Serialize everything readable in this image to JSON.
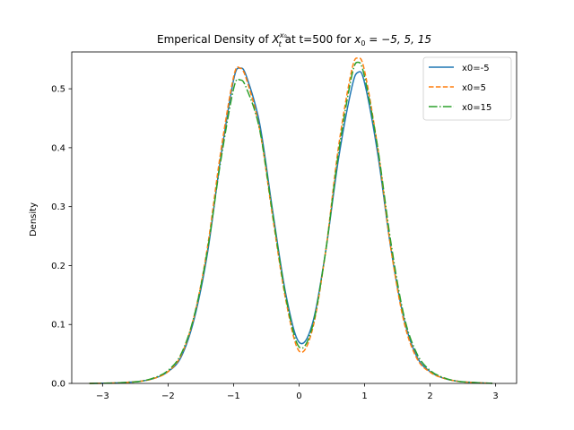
{
  "chart_data": {
    "type": "line",
    "title_prefix": "Emperical Density of ",
    "title_var": "X",
    "title_sub": "t",
    "title_sup": "x₀",
    "title_mid": " at t=500 for ",
    "title_math_var": "x",
    "title_math_sub": "0",
    "title_math_rest": " = −5, 5, 15",
    "xlabel": "",
    "ylabel": "Density",
    "xlim": [
      -3.47,
      3.32
    ],
    "ylim": [
      0.0,
      0.5625
    ],
    "x_ticks": [
      -3,
      -2,
      -1,
      0,
      1,
      2,
      3
    ],
    "x_tick_labels": [
      "−3",
      "−2",
      "−1",
      "0",
      "1",
      "2",
      "3"
    ],
    "y_ticks": [
      0.0,
      0.1,
      0.2,
      0.3,
      0.4,
      0.5
    ],
    "y_tick_labels": [
      "0.0",
      "0.1",
      "0.2",
      "0.3",
      "0.4",
      "0.5"
    ],
    "grid": false,
    "legend_position": "top-right",
    "series": [
      {
        "name": "x0=-5",
        "color": "#1f77b4",
        "dash": "solid",
        "x": [
          -3.2,
          -3.0,
          -2.8,
          -2.6,
          -2.4,
          -2.2,
          -2.0,
          -1.8,
          -1.6,
          -1.4,
          -1.2,
          -1.0,
          -0.9,
          -0.8,
          -0.6,
          -0.4,
          -0.2,
          0.0,
          0.2,
          0.4,
          0.6,
          0.8,
          0.9,
          1.0,
          1.2,
          1.4,
          1.6,
          1.8,
          2.0,
          2.2,
          2.4,
          2.6,
          2.8,
          2.95
        ],
        "y": [
          0.0,
          0.0003,
          0.0008,
          0.002,
          0.004,
          0.009,
          0.02,
          0.045,
          0.11,
          0.22,
          0.38,
          0.515,
          0.535,
          0.52,
          0.44,
          0.29,
          0.15,
          0.07,
          0.1,
          0.22,
          0.38,
          0.5,
          0.528,
          0.51,
          0.39,
          0.23,
          0.11,
          0.045,
          0.02,
          0.009,
          0.004,
          0.002,
          0.0008,
          0.0002
        ]
      },
      {
        "name": "x0=5",
        "color": "#ff7f0e",
        "dash": "dashed",
        "x": [
          -3.2,
          -3.0,
          -2.8,
          -2.6,
          -2.4,
          -2.2,
          -2.0,
          -1.8,
          -1.6,
          -1.4,
          -1.2,
          -1.0,
          -0.9,
          -0.8,
          -0.6,
          -0.4,
          -0.2,
          0.0,
          0.2,
          0.4,
          0.6,
          0.8,
          0.9,
          1.0,
          1.2,
          1.4,
          1.6,
          1.8,
          2.0,
          2.2,
          2.4,
          2.6,
          2.8,
          2.95
        ],
        "y": [
          0.0,
          0.0003,
          0.0008,
          0.002,
          0.004,
          0.009,
          0.02,
          0.048,
          0.115,
          0.23,
          0.39,
          0.52,
          0.535,
          0.515,
          0.43,
          0.28,
          0.14,
          0.055,
          0.09,
          0.22,
          0.4,
          0.53,
          0.552,
          0.53,
          0.4,
          0.23,
          0.105,
          0.042,
          0.019,
          0.009,
          0.004,
          0.002,
          0.0008,
          0.0002
        ]
      },
      {
        "name": "x0=15",
        "color": "#2ca02c",
        "dash": "dashdot",
        "x": [
          -3.2,
          -3.0,
          -2.8,
          -2.6,
          -2.4,
          -2.2,
          -2.0,
          -1.8,
          -1.6,
          -1.4,
          -1.2,
          -1.0,
          -0.9,
          -0.8,
          -0.6,
          -0.4,
          -0.2,
          0.0,
          0.2,
          0.4,
          0.6,
          0.8,
          0.9,
          1.0,
          1.2,
          1.4,
          1.6,
          1.8,
          2.0,
          2.2,
          2.4,
          2.6,
          2.8,
          2.95
        ],
        "y": [
          0.0,
          0.0003,
          0.0008,
          0.002,
          0.004,
          0.01,
          0.022,
          0.05,
          0.115,
          0.225,
          0.375,
          0.5,
          0.515,
          0.5,
          0.43,
          0.285,
          0.145,
          0.062,
          0.095,
          0.22,
          0.39,
          0.52,
          0.545,
          0.52,
          0.4,
          0.24,
          0.115,
          0.05,
          0.022,
          0.01,
          0.004,
          0.002,
          0.0008,
          0.0002
        ]
      }
    ]
  }
}
